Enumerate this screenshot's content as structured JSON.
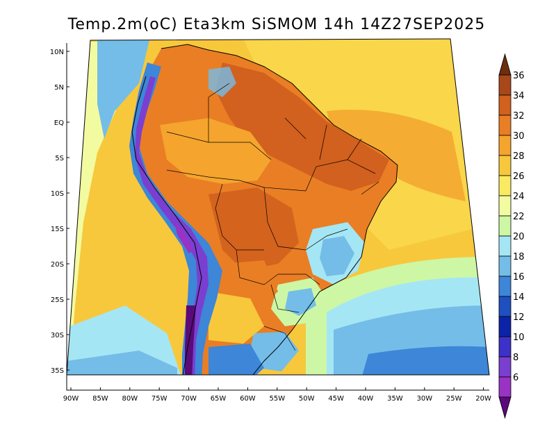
{
  "title": "Temp.2m(oC) Eta3km SiSMOM 14h 14Z27SEP2025",
  "lat_labels": [
    "10N",
    "5N",
    "EQ",
    "5S",
    "10S",
    "15S",
    "20S",
    "25S",
    "30S",
    "35S"
  ],
  "lon_labels": [
    "90W",
    "85W",
    "80W",
    "75W",
    "70W",
    "65W",
    "60W",
    "55W",
    "50W",
    "45W",
    "40W",
    "35W",
    "30W",
    "25W",
    "20W"
  ],
  "colorbar": {
    "labels": [
      "36",
      "34",
      "32",
      "30",
      "28",
      "26",
      "24",
      "22",
      "20",
      "18",
      "16",
      "14",
      "12",
      "10",
      "8",
      "6"
    ],
    "top_arrow_color": "#6b2e0e",
    "bottom_arrow_color": "#5a0a7a",
    "colors": [
      "#7a3710",
      "#a8481a",
      "#d2601e",
      "#e97e24",
      "#f5a42e",
      "#f7c83c",
      "#faea62",
      "#f3fba0",
      "#cdf7a4",
      "#a5e6f4",
      "#74bde8",
      "#3d86d8",
      "#1f4fc0",
      "#0c23a8",
      "#3c31c8",
      "#7a3fd0",
      "#9a32c4",
      "#5a0a7a"
    ]
  },
  "map": {
    "ocean_color": "#f9d64a",
    "pacific_color": "#f7c83c"
  }
}
